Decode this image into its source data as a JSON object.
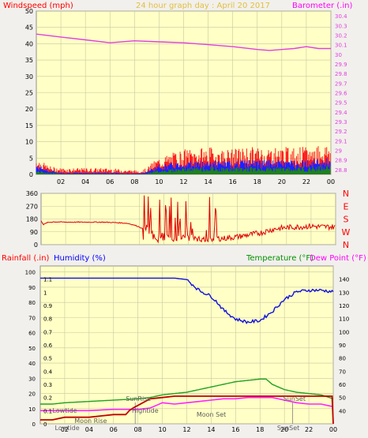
{
  "header": {
    "left_label": "Windspeed (mph)",
    "title": "24 hour graph day : April 20 2017",
    "right_label": "Barometer (.in)"
  },
  "colors": {
    "plot_bg": "#ffffc6",
    "frame_bg": "#f2f0ec",
    "grid": "#c8c8a0",
    "wind_gust": "#ff2020",
    "wind_avg": "#2020ff",
    "wind_low": "#208020",
    "barometer": "#e040e0",
    "direction": "#e00000",
    "humidity": "#1010e0",
    "temperature": "#20a020",
    "dewpoint": "#ff20ff",
    "rainfall": "#c00000",
    "label_red": "#ff0000",
    "label_blue": "#0000ff",
    "label_green": "#009000",
    "label_magenta": "#ff00ff"
  },
  "chart_data": [
    {
      "id": "wind-barometer",
      "type": "line",
      "title": "24 hour graph day : April 20 2017",
      "ylabel": "Windspeed (mph)",
      "y2label": "Barometer (.in)",
      "xlim": [
        0,
        24
      ],
      "x_ticks": [
        "02",
        "04",
        "06",
        "08",
        "10",
        "12",
        "14",
        "16",
        "18",
        "20",
        "22",
        "00"
      ],
      "ylim": [
        0,
        50
      ],
      "y_ticks": [
        0,
        5,
        10,
        15,
        20,
        25,
        30,
        35,
        40,
        45,
        50
      ],
      "y2lim": [
        28.75,
        30.45
      ],
      "y2_ticks": [
        "28.8",
        "28.9",
        "29",
        "29.1",
        "29.2",
        "29.3",
        "29.4",
        "29.5",
        "29.6",
        "29.7",
        "29.8",
        "29.9",
        "30",
        "30.1",
        "30.2",
        "30.3",
        "30.4"
      ],
      "grid": true,
      "series": [
        {
          "key": "gust",
          "axis": "y",
          "x": [
            0,
            0.5,
            1,
            2,
            3,
            4,
            5,
            6,
            7,
            8,
            8.5,
            9,
            9.5,
            10,
            11,
            12,
            13,
            14,
            15,
            16,
            17,
            18,
            19,
            20,
            21,
            22,
            23,
            24
          ],
          "values": [
            4,
            3,
            2,
            1.5,
            1.5,
            1.5,
            1.5,
            1.5,
            1.2,
            1,
            1,
            1.5,
            3,
            4,
            5,
            6,
            6,
            6.5,
            6,
            6,
            6.5,
            6.5,
            6.5,
            6.5,
            6.5,
            6.5,
            7,
            7.5
          ]
        },
        {
          "key": "avg",
          "axis": "y",
          "x": [
            0,
            0.5,
            1,
            2,
            3,
            4,
            5,
            6,
            7,
            8,
            8.5,
            9,
            9.5,
            10,
            11,
            12,
            13,
            14,
            15,
            16,
            17,
            18,
            19,
            20,
            21,
            22,
            23,
            24
          ],
          "values": [
            2.5,
            2,
            1.2,
            0.5,
            0.5,
            0.5,
            0.5,
            0.5,
            0.4,
            0.3,
            0.3,
            0.8,
            1.8,
            2.5,
            3,
            3.5,
            3.5,
            3.8,
            3.5,
            3.5,
            3.8,
            3.8,
            3.8,
            3.8,
            3.8,
            3.8,
            4,
            4.2
          ]
        },
        {
          "key": "low",
          "axis": "y",
          "x": [
            0,
            0.5,
            1,
            2,
            3,
            4,
            5,
            6,
            7,
            8,
            8.5,
            9,
            9.5,
            10,
            11,
            12,
            13,
            14,
            15,
            16,
            17,
            18,
            19,
            20,
            21,
            22,
            23,
            24
          ],
          "values": [
            1,
            0.8,
            0.5,
            0.2,
            0.2,
            0.2,
            0.2,
            0.2,
            0.2,
            0.1,
            0.1,
            0.3,
            0.8,
            1.2,
            1.5,
            1.8,
            1.8,
            2,
            1.8,
            1.8,
            2,
            2,
            2,
            2,
            2,
            2,
            2.2,
            2.4
          ]
        },
        {
          "key": "barometer",
          "axis": "y2",
          "x": [
            0,
            2,
            4,
            6,
            8,
            10,
            12,
            14,
            16,
            18,
            19,
            20,
            21,
            22,
            23,
            24
          ],
          "values": [
            30.21,
            30.18,
            30.15,
            30.12,
            30.14,
            30.13,
            30.12,
            30.1,
            30.08,
            30.05,
            30.04,
            30.05,
            30.06,
            30.08,
            30.06,
            30.06
          ]
        }
      ]
    },
    {
      "id": "wind-direction",
      "type": "line",
      "ylabel": "Wind direction",
      "xlim": [
        0,
        24
      ],
      "ylim": [
        0,
        360
      ],
      "y_ticks": [
        0,
        90,
        180,
        270,
        360
      ],
      "compass_labels": [
        "N",
        "W",
        "S",
        "E",
        "N"
      ],
      "grid": true,
      "series": [
        {
          "key": "direction",
          "x": [
            0,
            0.2,
            0.5,
            1,
            2,
            3,
            4,
            5,
            6,
            7,
            7.5,
            8,
            8.5,
            9,
            9.5,
            10,
            11,
            12,
            13,
            14,
            15,
            16,
            17,
            18,
            19,
            20,
            21,
            22,
            23,
            24
          ],
          "values": [
            170,
            140,
            155,
            160,
            158,
            158,
            158,
            158,
            155,
            150,
            140,
            125,
            100,
            75,
            20,
            60,
            40,
            55,
            30,
            40,
            45,
            55,
            70,
            85,
            110,
            120,
            125,
            130,
            125,
            125
          ]
        }
      ]
    },
    {
      "id": "temp-humidity-rain",
      "type": "line",
      "ylabel": "Rainfall (.in)",
      "y2label": "Humidity (%)",
      "y3label": "Temperature (°F)",
      "y4label": "Dew Point (°F)",
      "xlim": [
        0,
        24
      ],
      "x_ticks": [
        "02",
        "04",
        "06",
        "08",
        "10",
        "12",
        "14",
        "16",
        "18",
        "20",
        "22",
        "00"
      ],
      "rain_ylim": [
        0,
        1.2
      ],
      "rain_ticks": [
        "0",
        "0.1",
        "0.2",
        "0.3",
        "0.4",
        "0.5",
        "0.6",
        "0.7",
        "0.8",
        "0.9",
        "1",
        "1.1"
      ],
      "humidity_ylim": [
        0,
        104
      ],
      "humidity_ticks": [
        0,
        10,
        20,
        30,
        40,
        50,
        60,
        70,
        80,
        90,
        100
      ],
      "temp_ylim": [
        30,
        150
      ],
      "temp_ticks": [
        40,
        50,
        60,
        70,
        80,
        90,
        100,
        110,
        120,
        130,
        140
      ],
      "grid": true,
      "series": [
        {
          "key": "humidity",
          "axis": "humidity",
          "x": [
            0,
            2,
            4,
            6,
            8,
            10,
            11,
            12,
            13,
            14,
            14.5,
            15,
            16,
            17,
            18,
            19,
            20,
            21,
            22,
            23,
            24
          ],
          "values": [
            96,
            96,
            96,
            96,
            96,
            96,
            96,
            95,
            88,
            84,
            80,
            75,
            69,
            67,
            68,
            74,
            82,
            87,
            88,
            88,
            87
          ]
        },
        {
          "key": "temperature",
          "axis": "temp",
          "x": [
            0,
            1,
            2,
            4,
            6,
            8,
            9,
            10,
            11,
            12,
            13,
            14,
            15,
            16,
            17,
            18,
            18.5,
            19,
            20,
            21,
            22,
            23,
            24
          ],
          "values": [
            45,
            45,
            46,
            47,
            48,
            49,
            50,
            52,
            53,
            54,
            56,
            58,
            60,
            62,
            63,
            64,
            64,
            60,
            56,
            54,
            53,
            52,
            49
          ]
        },
        {
          "key": "dewpoint",
          "axis": "temp",
          "x": [
            0,
            2,
            4,
            6,
            8,
            9,
            9.5,
            10,
            11,
            12,
            13,
            14,
            15,
            16,
            17,
            18,
            19,
            20,
            21,
            22,
            23,
            24
          ],
          "values": [
            40,
            40,
            40,
            41,
            41,
            42,
            44,
            46,
            45,
            46,
            47,
            48,
            49,
            49,
            50,
            50,
            50,
            48,
            46,
            45,
            45,
            43
          ]
        },
        {
          "key": "rainfall",
          "axis": "rain",
          "x": [
            0,
            1,
            2,
            3,
            4,
            5,
            6,
            7,
            7.3,
            7.6,
            8,
            8.4,
            8.6,
            9,
            10,
            11,
            12,
            13,
            14,
            15,
            16,
            17,
            18,
            19,
            20,
            21,
            22,
            23,
            23.9,
            24
          ],
          "values": [
            0.03,
            0.03,
            0.05,
            0.05,
            0.05,
            0.06,
            0.07,
            0.07,
            0.1,
            0.12,
            0.14,
            0.16,
            0.17,
            0.19,
            0.2,
            0.21,
            0.21,
            0.21,
            0.21,
            0.21,
            0.21,
            0.21,
            0.21,
            0.21,
            0.21,
            0.21,
            0.21,
            0.21,
            0.21,
            0
          ]
        }
      ],
      "annotations": [
        {
          "text": "SunRise",
          "x": 7.0,
          "row": "upper"
        },
        {
          "text": "SunSet",
          "x": 19.9,
          "row": "upper"
        },
        {
          "text": "Lowtide",
          "x": 1.0,
          "row": "mid"
        },
        {
          "text": "Hightide",
          "x": 7.5,
          "row": "mid"
        },
        {
          "text": "Moon Set",
          "x": 12.8,
          "row": "lower"
        },
        {
          "text": "Moon Rise",
          "x": 2.8,
          "row": "bottom"
        },
        {
          "text": "Lowtide",
          "x": 1.2,
          "row": "axis"
        },
        {
          "text": "SunSet",
          "x": 19.4,
          "row": "axis"
        }
      ]
    }
  ]
}
